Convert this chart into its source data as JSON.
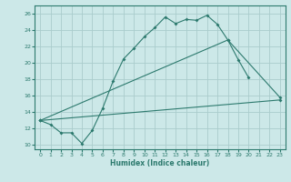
{
  "title": "",
  "xlabel": "Humidex (Indice chaleur)",
  "bg_color": "#cce8e8",
  "grid_color": "#aacccc",
  "line_color": "#2d7a6e",
  "xlim": [
    -0.5,
    23.5
  ],
  "ylim": [
    9.5,
    27.0
  ],
  "xticks": [
    0,
    1,
    2,
    3,
    4,
    5,
    6,
    7,
    8,
    9,
    10,
    11,
    12,
    13,
    14,
    15,
    16,
    17,
    18,
    19,
    20,
    21,
    22,
    23
  ],
  "yticks": [
    10,
    12,
    14,
    16,
    18,
    20,
    22,
    24,
    26
  ],
  "line1_x": [
    0,
    1,
    2,
    3,
    4,
    5,
    6,
    7,
    8,
    9,
    10,
    11,
    12,
    13,
    14,
    15,
    16,
    17,
    18,
    19,
    20
  ],
  "line1_y": [
    13.0,
    12.5,
    11.5,
    11.5,
    10.2,
    11.8,
    14.5,
    17.8,
    20.5,
    21.8,
    23.2,
    24.3,
    25.6,
    24.8,
    25.3,
    25.2,
    25.8,
    24.7,
    22.8,
    20.4,
    18.2
  ],
  "line2_x": [
    0,
    18,
    23
  ],
  "line2_y": [
    13.0,
    22.8,
    15.8
  ],
  "line3_x": [
    0,
    23
  ],
  "line3_y": [
    13.0,
    15.5
  ]
}
